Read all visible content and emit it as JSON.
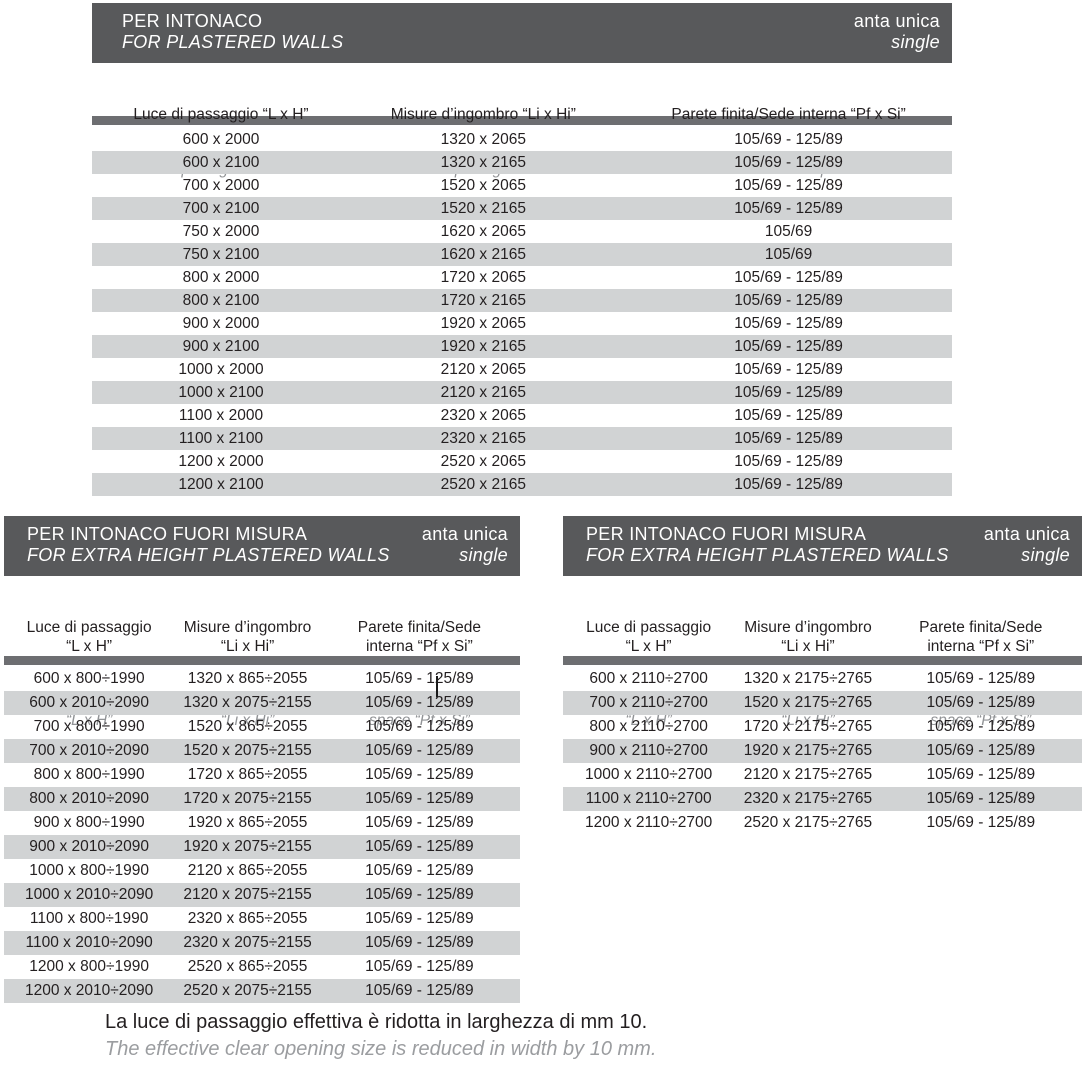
{
  "colors": {
    "band_gray": "#58595b",
    "separator_gray": "#6d6e71",
    "stripe_gray": "#d1d3d4",
    "text_dark": "#231f20",
    "text_gray_italic": "#919396",
    "text_white": "#ffffff"
  },
  "tables": {
    "top": {
      "title_it": "PER INTONACO",
      "title_en": "FOR PLASTERED WALLS",
      "variant_it": "anta unica",
      "variant_en": "single",
      "columns": [
        {
          "it": "Luce di passaggio “L x H”",
          "en": "Clear opening size “L x H”"
        },
        {
          "it": "Misure d’ingombro “Li x Hi”",
          "en": "Structural opening size “Li x Hi”"
        },
        {
          "it": "Parete finita/Sede interna “Pf x Si”",
          "en": "Finished wall/Internal space “Pf x Si”"
        }
      ],
      "rows": [
        [
          "600 x 2000",
          "1320 x 2065",
          "105/69 - 125/89"
        ],
        [
          "600 x 2100",
          "1320 x 2165",
          "105/69 - 125/89"
        ],
        [
          "700 x 2000",
          "1520 x 2065",
          "105/69 - 125/89"
        ],
        [
          "700 x 2100",
          "1520 x 2165",
          "105/69 - 125/89"
        ],
        [
          "750 x 2000",
          "1620 x 2065",
          "105/69"
        ],
        [
          "750 x 2100",
          "1620 x 2165",
          "105/69"
        ],
        [
          "800 x 2000",
          "1720 x 2065",
          "105/69 - 125/89"
        ],
        [
          "800 x 2100",
          "1720 x 2165",
          "105/69 - 125/89"
        ],
        [
          "900 x 2000",
          "1920 x 2065",
          "105/69 - 125/89"
        ],
        [
          "900 x 2100",
          "1920 x 2165",
          "105/69 - 125/89"
        ],
        [
          "1000 x 2000",
          "2120 x 2065",
          "105/69 - 125/89"
        ],
        [
          "1000 x 2100",
          "2120 x 2165",
          "105/69 - 125/89"
        ],
        [
          "1100 x 2000",
          "2320 x 2065",
          "105/69 - 125/89"
        ],
        [
          "1100 x 2100",
          "2320 x 2165",
          "105/69 - 125/89"
        ],
        [
          "1200 x 2000",
          "2520 x 2065",
          "105/69 - 125/89"
        ],
        [
          "1200 x 2100",
          "2520 x 2165",
          "105/69 - 125/89"
        ]
      ]
    },
    "bottom_left": {
      "title_it": "PER INTONACO FUORI MISURA",
      "title_en": "FOR EXTRA HEIGHT PLASTERED WALLS",
      "variant_it": "anta unica",
      "variant_en": "single",
      "columns": [
        {
          "it": "Luce di passaggio\n“L x H”",
          "en": "Clear opening size\n“L x H”"
        },
        {
          "it": "Misure d’ingombro\n“Li x Hi”",
          "en": "Structural opening size\n“Li x Hi”"
        },
        {
          "it": "Parete finita/Sede\ninterna “Pf x Si”",
          "en": "Finished wall/Internal\nspace “Pf x Si”"
        }
      ],
      "rows": [
        [
          "600 x 800÷1990",
          "1320 x 865÷2055",
          "105/69 - 125/89"
        ],
        [
          "600 x 2010÷2090",
          "1320 x 2075÷2155",
          "105/69 - 125/89"
        ],
        [
          "700 x 800÷1990",
          "1520 x 865÷2055",
          "105/69 - 125/89"
        ],
        [
          "700 x 2010÷2090",
          "1520 x 2075÷2155",
          "105/69 - 125/89"
        ],
        [
          "800 x 800÷1990",
          "1720 x 865÷2055",
          "105/69 - 125/89"
        ],
        [
          "800 x 2010÷2090",
          "1720 x 2075÷2155",
          "105/69 - 125/89"
        ],
        [
          "900 x 800÷1990",
          "1920 x 865÷2055",
          "105/69 - 125/89"
        ],
        [
          "900 x 2010÷2090",
          "1920 x 2075÷2155",
          "105/69 - 125/89"
        ],
        [
          "1000 x 800÷1990",
          "2120 x 865÷2055",
          "105/69 - 125/89"
        ],
        [
          "1000 x 2010÷2090",
          "2120 x 2075÷2155",
          "105/69 - 125/89"
        ],
        [
          "1100 x 800÷1990",
          "2320 x 865÷2055",
          "105/69 - 125/89"
        ],
        [
          "1100 x 2010÷2090",
          "2320 x 2075÷2155",
          "105/69 - 125/89"
        ],
        [
          "1200 x 800÷1990",
          "2520 x 865÷2055",
          "105/69 - 125/89"
        ],
        [
          "1200 x 2010÷2090",
          "2520 x 2075÷2155",
          "105/69 - 125/89"
        ]
      ]
    },
    "bottom_right": {
      "title_it": "PER INTONACO FUORI MISURA",
      "title_en": "FOR EXTRA HEIGHT PLASTERED WALLS",
      "variant_it": "anta unica",
      "variant_en": "single",
      "columns": [
        {
          "it": "Luce di passaggio\n“L x H”",
          "en": "Clear opening size\n“L x H”"
        },
        {
          "it": "Misure d’ingombro\n“Li x Hi”",
          "en": "Structural opening size\n“Li x Hi”"
        },
        {
          "it": "Parete finita/Sede\ninterna “Pf x Si”",
          "en": "Finished wall/Internal\nspace “Pf x Si”"
        }
      ],
      "rows": [
        [
          "600 x 2110÷2700",
          "1320 x 2175÷2765",
          "105/69 - 125/89"
        ],
        [
          "700 x 2110÷2700",
          "1520 x 2175÷2765",
          "105/69 - 125/89"
        ],
        [
          "800 x 2110÷2700",
          "1720 x 2175÷2765",
          "105/69 - 125/89"
        ],
        [
          "900 x 2110÷2700",
          "1920 x 2175÷2765",
          "105/69 - 125/89"
        ],
        [
          "1000 x 2110÷2700",
          "2120 x 2175÷2765",
          "105/69 - 125/89"
        ],
        [
          "1100 x 2110÷2700",
          "2320 x 2175÷2765",
          "105/69 - 125/89"
        ],
        [
          "1200 x 2110÷2700",
          "2520 x 2175÷2765",
          "105/69 - 125/89"
        ]
      ]
    }
  },
  "footnote": {
    "it": "La luce di passaggio effettiva è ridotta in larghezza di mm 10.",
    "en": "The effective clear opening size is reduced in width by 10 mm."
  }
}
